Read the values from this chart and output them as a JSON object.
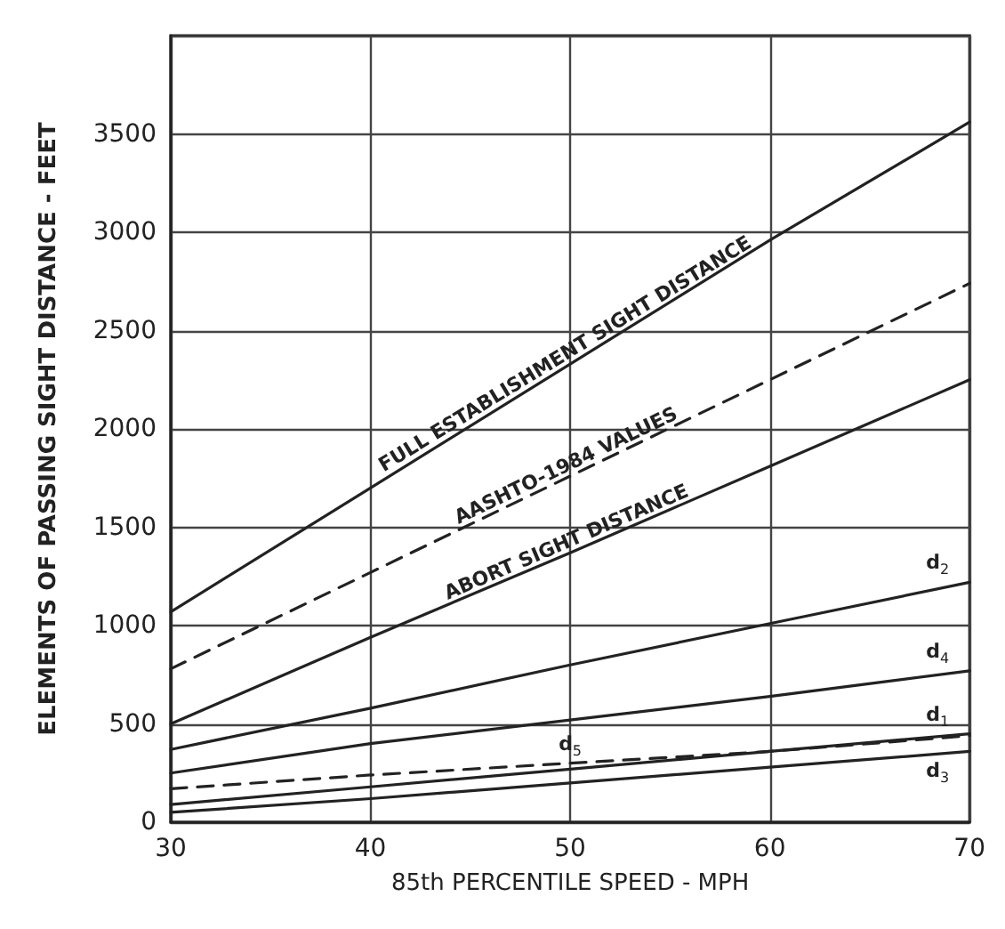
{
  "chart_data": {
    "type": "line",
    "xlabel": "85th PERCENTILE SPEED - MPH",
    "ylabel": "ELEMENTS OF PASSING SIGHT DISTANCE - FEET",
    "x": [
      30,
      40,
      50,
      60,
      70
    ],
    "xlim": [
      30,
      70
    ],
    "xticks": [
      30,
      40,
      50,
      60,
      70
    ],
    "ylim": [
      0,
      4000
    ],
    "yticks": [
      0,
      500,
      1000,
      1500,
      2000,
      2500,
      3000,
      3500,
      {
        "value": 4000,
        "label": null
      }
    ],
    "grid": true,
    "legend": false,
    "marker": "none",
    "series": [
      {
        "name": "FULL ESTABLISHMENT SIGHT DISTANCE",
        "color": "#222222",
        "line_style": "solid",
        "values": [
          1070,
          1700,
          2330,
          2960,
          3560
        ]
      },
      {
        "name": "AASHTO-1984 VALUES",
        "color": "#222222",
        "line_style": "dashed",
        "values": [
          780,
          1270,
          1760,
          2250,
          2740
        ]
      },
      {
        "name": "ABORT SIGHT DISTANCE",
        "color": "#222222",
        "line_style": "solid",
        "values": [
          500,
          940,
          1370,
          1810,
          2250
        ]
      },
      {
        "name": "d$_{2}$",
        "color": "#222222",
        "line_style": "solid",
        "values": [
          370,
          580,
          800,
          1010,
          1220
        ]
      },
      {
        "name": "d$_{4}$",
        "color": "#222222",
        "line_style": "solid",
        "values": [
          250,
          400,
          520,
          640,
          770
        ]
      },
      {
        "name": "d$_{1}$",
        "color": "#222222",
        "line_style": "solid",
        "values": [
          90,
          180,
          270,
          360,
          450
        ]
      },
      {
        "name": "d$_{5}$",
        "color": "#222222",
        "line_style": "dashed",
        "values": [
          170,
          240,
          300,
          360,
          440
        ]
      },
      {
        "name": "d$_{3}$",
        "color": "#222222",
        "line_style": "solid",
        "values": [
          50,
          120,
          200,
          280,
          360
        ]
      }
    ]
  }
}
